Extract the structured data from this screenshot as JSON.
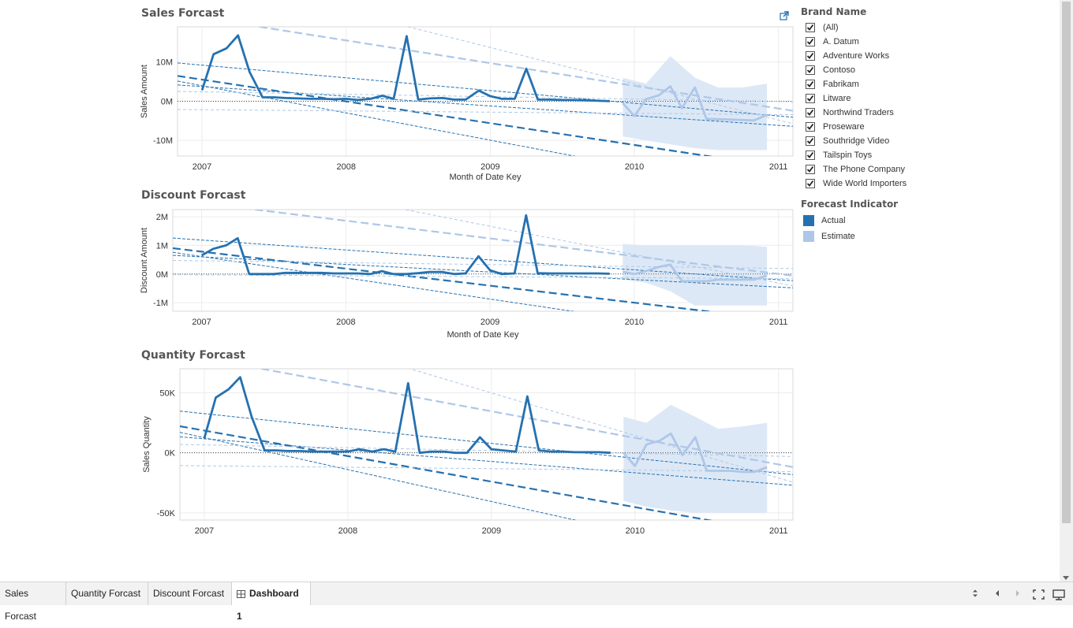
{
  "charts": [
    {
      "title": "Sales Forcast",
      "ylabel": "Sales Amount",
      "xlabel": "Month of Date Key",
      "yticks": [
        "10M",
        "0M",
        "-10M"
      ]
    },
    {
      "title": "Discount Forcast",
      "ylabel": "Discount Amount",
      "xlabel": "Month of Date Key",
      "yticks": [
        "2M",
        "1M",
        "0M",
        "-1M"
      ]
    },
    {
      "title": "Quantity Forcast",
      "ylabel": "Sales Quantity",
      "xlabel": "",
      "yticks": [
        "50K",
        "0K",
        "-50K"
      ]
    }
  ],
  "xticks": [
    "2007",
    "2008",
    "2009",
    "2010",
    "2011"
  ],
  "filter": {
    "title": "Brand Name",
    "items": [
      {
        "label": "(All)",
        "checked": true
      },
      {
        "label": "A. Datum",
        "checked": true
      },
      {
        "label": "Adventure Works",
        "checked": true
      },
      {
        "label": "Contoso",
        "checked": true
      },
      {
        "label": "Fabrikam",
        "checked": true
      },
      {
        "label": "Litware",
        "checked": true
      },
      {
        "label": "Northwind Traders",
        "checked": true
      },
      {
        "label": "Proseware",
        "checked": true
      },
      {
        "label": "Southridge Video",
        "checked": true
      },
      {
        "label": "Tailspin Toys",
        "checked": true
      },
      {
        "label": "The Phone Company",
        "checked": true
      },
      {
        "label": "Wide World Importers",
        "checked": true
      }
    ]
  },
  "legend": {
    "title": "Forecast Indicator",
    "items": [
      {
        "label": "Actual",
        "color": "#2571b0"
      },
      {
        "label": "Estimate",
        "color": "#aec7e8"
      }
    ]
  },
  "tabs": [
    {
      "label": "Sales Forcast",
      "active": false
    },
    {
      "label": "Quantity Forcast",
      "active": false
    },
    {
      "label": "Discount Forcast",
      "active": false
    },
    {
      "label": "Dashboard 1",
      "active": true,
      "icon": "grid-icon"
    }
  ],
  "colors": {
    "actual": "#2571b0",
    "estimate": "#aec7e8",
    "band": "#dde8f6"
  },
  "chart_data": [
    {
      "type": "line",
      "title": "Sales Forcast",
      "xlabel": "Month of Date Key",
      "ylabel": "Sales Amount",
      "xlim": [
        2006.83,
        2011.1
      ],
      "ylim": [
        -14,
        19
      ],
      "unit": "M",
      "yticks": [
        10,
        0,
        -10
      ],
      "series": [
        {
          "name": "Actual",
          "x": [
            2007.0,
            2007.08,
            2007.17,
            2007.25,
            2007.33,
            2007.42,
            2007.5,
            2007.58,
            2007.67,
            2007.75,
            2007.83,
            2007.92,
            2008.0,
            2008.08,
            2008.17,
            2008.25,
            2008.33,
            2008.42,
            2008.5,
            2008.58,
            2008.67,
            2008.75,
            2008.83,
            2008.92,
            2009.0,
            2009.08,
            2009.17,
            2009.25,
            2009.33,
            2009.42,
            2009.5,
            2009.58,
            2009.67,
            2009.75,
            2009.83
          ],
          "values": [
            2.8,
            12.0,
            13.5,
            16.8,
            7.5,
            1.0,
            1.0,
            0.8,
            0.7,
            0.6,
            0.6,
            0.5,
            0.6,
            0.3,
            0.6,
            1.4,
            0.6,
            16.6,
            0.4,
            0.7,
            0.8,
            0.4,
            0.4,
            2.7,
            1.3,
            0.6,
            0.6,
            8.3,
            0.4,
            0.4,
            0.3,
            0.3,
            0.2,
            0.1,
            0.0
          ]
        },
        {
          "name": "Estimate",
          "x": [
            2009.92,
            2010.0,
            2010.08,
            2010.17,
            2010.25,
            2010.33,
            2010.42,
            2010.5,
            2010.58,
            2010.67,
            2010.75,
            2010.83,
            2010.92
          ],
          "values": [
            -0.5,
            -3.8,
            0.5,
            1.5,
            3.8,
            -1.8,
            3.5,
            -4.5,
            -4.6,
            -4.7,
            -4.8,
            -4.9,
            -3.5
          ]
        }
      ],
      "band": {
        "x": [
          2009.92,
          2010.08,
          2010.25,
          2010.42,
          2010.58,
          2010.75,
          2010.92
        ],
        "upper": [
          6,
          4.5,
          11.5,
          6,
          3.5,
          3.5,
          4.5
        ],
        "lower": [
          -9,
          -10,
          -11,
          -12,
          -12.5,
          -12.5,
          -12.5
        ]
      }
    },
    {
      "type": "line",
      "title": "Discount Forcast",
      "xlabel": "Month of Date Key",
      "ylabel": "Discount Amount",
      "xlim": [
        2006.8,
        2011.1
      ],
      "ylim": [
        -1.3,
        2.25
      ],
      "unit": "M",
      "yticks": [
        2,
        1,
        0,
        -1
      ],
      "series": [
        {
          "name": "Actual",
          "x": [
            2007.0,
            2007.08,
            2007.17,
            2007.25,
            2007.33,
            2007.42,
            2007.5,
            2007.58,
            2007.67,
            2007.75,
            2007.83,
            2007.92,
            2008.0,
            2008.08,
            2008.17,
            2008.25,
            2008.33,
            2008.42,
            2008.5,
            2008.58,
            2008.67,
            2008.75,
            2008.83,
            2008.92,
            2009.0,
            2009.08,
            2009.17,
            2009.25,
            2009.33,
            2009.42,
            2009.5,
            2009.58,
            2009.67,
            2009.75,
            2009.83
          ],
          "values": [
            0.65,
            0.88,
            1.0,
            1.25,
            0.0,
            0.0,
            0.0,
            0.04,
            0.04,
            0.04,
            0.04,
            0.02,
            0.02,
            0.02,
            0.0,
            0.1,
            0.0,
            0.0,
            0.03,
            0.07,
            0.07,
            0.0,
            0.02,
            0.62,
            0.13,
            0.0,
            0.02,
            2.05,
            0.03,
            0.02,
            0.02,
            0.02,
            0.02,
            0.02,
            0.01
          ]
        },
        {
          "name": "Estimate",
          "x": [
            2009.92,
            2010.0,
            2010.08,
            2010.17,
            2010.25,
            2010.33,
            2010.42,
            2010.5,
            2010.58,
            2010.67,
            2010.75,
            2010.83,
            2010.92
          ],
          "values": [
            0.08,
            0.0,
            0.1,
            0.25,
            0.33,
            -0.25,
            -0.25,
            -0.25,
            -0.2,
            -0.2,
            -0.2,
            -0.2,
            -0.05
          ]
        }
      ],
      "band": {
        "x": [
          2009.92,
          2010.08,
          2010.25,
          2010.42,
          2010.58,
          2010.75,
          2010.92
        ],
        "upper": [
          1.05,
          1.0,
          1.0,
          1.0,
          1.0,
          1.0,
          0.95
        ],
        "lower": [
          -0.2,
          -0.3,
          -0.6,
          -1.1,
          -1.1,
          -1.1,
          -1.1
        ]
      }
    },
    {
      "type": "line",
      "title": "Quantity Forcast",
      "xlabel": "",
      "ylabel": "Sales Quantity",
      "xlim": [
        2006.83,
        2011.1
      ],
      "ylim": [
        -56,
        70
      ],
      "unit": "K",
      "yticks": [
        50,
        0,
        -50
      ],
      "series": [
        {
          "name": "Actual",
          "x": [
            2007.0,
            2007.08,
            2007.17,
            2007.25,
            2007.33,
            2007.42,
            2007.5,
            2007.58,
            2007.67,
            2007.75,
            2007.83,
            2007.92,
            2008.0,
            2008.08,
            2008.17,
            2008.25,
            2008.33,
            2008.42,
            2008.5,
            2008.58,
            2008.67,
            2008.75,
            2008.83,
            2008.92,
            2009.0,
            2009.08,
            2009.17,
            2009.25,
            2009.33,
            2009.42,
            2009.5,
            2009.58,
            2009.67,
            2009.75,
            2009.83
          ],
          "values": [
            12,
            46,
            53,
            63,
            30,
            2,
            2,
            1.5,
            1.5,
            1,
            1,
            1,
            1,
            3,
            1,
            3,
            1,
            58,
            0,
            1,
            1,
            0,
            0,
            13,
            3,
            2,
            1,
            47,
            2,
            1,
            1,
            0.5,
            0.5,
            0.5,
            0
          ]
        },
        {
          "name": "Estimate",
          "x": [
            2009.92,
            2010.0,
            2010.08,
            2010.17,
            2010.25,
            2010.33,
            2010.42,
            2010.5,
            2010.58,
            2010.67,
            2010.75,
            2010.83,
            2010.92
          ],
          "values": [
            0,
            -11,
            7,
            10,
            16,
            -2,
            13,
            -15,
            -15,
            -15,
            -16,
            -16,
            -12
          ]
        }
      ],
      "band": {
        "x": [
          2009.92,
          2010.08,
          2010.25,
          2010.42,
          2010.58,
          2010.75,
          2010.92
        ],
        "upper": [
          30,
          25,
          40,
          30,
          20,
          22,
          25
        ],
        "lower": [
          -40,
          -45,
          -48,
          -50,
          -50,
          -50,
          -50
        ]
      }
    }
  ]
}
